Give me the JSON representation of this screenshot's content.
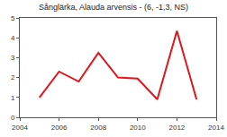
{
  "chart_data": {
    "type": "line",
    "title": "Sånglärka, Alauda arvensis - (6, -1,3, NS)",
    "x": [
      2005,
      2006,
      2007,
      2008,
      2009,
      2010,
      2011,
      2012,
      2013
    ],
    "values": [
      1.0,
      2.3,
      1.8,
      3.25,
      2.0,
      1.95,
      0.9,
      4.35,
      0.9
    ],
    "color": "#e3141b",
    "xlim": [
      2004,
      2014
    ],
    "xticks": [
      2004,
      2006,
      2008,
      2010,
      2012,
      2014
    ],
    "ylim": [
      0,
      5
    ],
    "yticks": [
      0,
      1,
      2,
      3,
      4,
      5
    ],
    "grid": false
  }
}
